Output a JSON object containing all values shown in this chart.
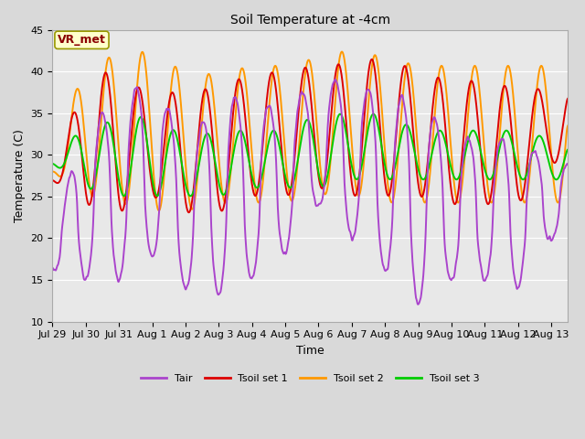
{
  "title": "Soil Temperature at -4cm",
  "xlabel": "Time",
  "ylabel": "Temperature (C)",
  "ylim": [
    10,
    45
  ],
  "background_color": "#d9d9d9",
  "plot_bg_color": "#e8e8e8",
  "grid_color": "#ffffff",
  "annotation_text": "VR_met",
  "annotation_bg": "#ffffcc",
  "annotation_border": "#999900",
  "annotation_text_color": "#8b0000",
  "colors": {
    "Tair": "#aa44cc",
    "Tsoil set 1": "#dd0000",
    "Tsoil set 2": "#ff9900",
    "Tsoil set 3": "#00cc00"
  },
  "tick_labels": [
    "Jul 29",
    "Jul 30",
    "Jul 31",
    "Aug 1",
    "Aug 2",
    "Aug 3",
    "Aug 4",
    "Aug 5",
    "Aug 6",
    "Aug 7",
    "Aug 8",
    "Aug 9",
    "Aug 10",
    "Aug 11",
    "Aug 12",
    "Aug 13"
  ],
  "linewidth": 1.4
}
